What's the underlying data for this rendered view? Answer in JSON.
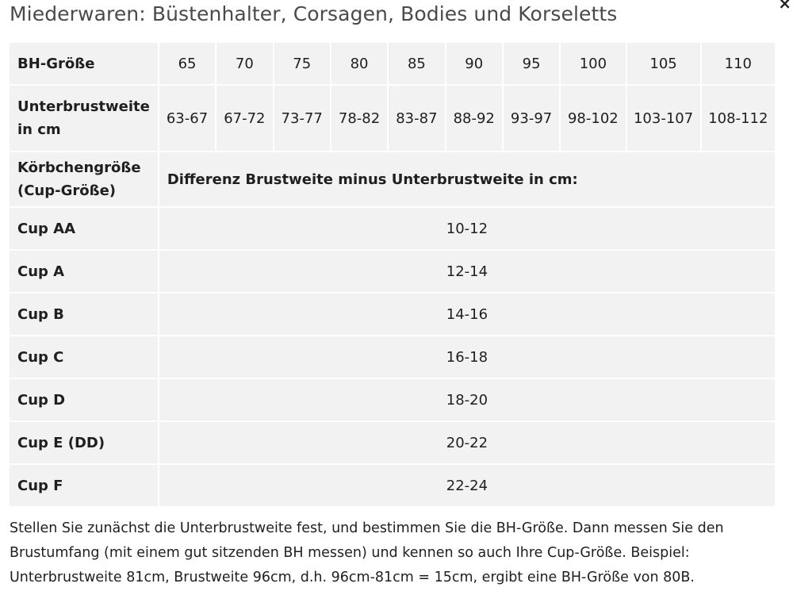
{
  "close_label": "×",
  "title": "Miederwaren: Büstenhalter, Corsagen, Bodies und Korseletts",
  "table": {
    "bh_label": "BH-Größe",
    "sizes": [
      "65",
      "70",
      "75",
      "80",
      "85",
      "90",
      "95",
      "100",
      "105",
      "110"
    ],
    "underbust_label_line1": "Unterbrustweite",
    "underbust_label_line2": "in cm",
    "underbust": [
      "63-67",
      "67-72",
      "73-77",
      "78-82",
      "83-87",
      "88-92",
      "93-97",
      "98-102",
      "103-107",
      "108-112"
    ],
    "cup_label_line1": "Körbchengröße",
    "cup_label_line2": "(Cup-Größe)",
    "diff_header": "Differenz Brustweite minus Unterbrustweite in cm:",
    "cups": [
      {
        "name": "Cup AA",
        "range": "10-12"
      },
      {
        "name": "Cup A",
        "range": "12-14"
      },
      {
        "name": "Cup B",
        "range": "14-16"
      },
      {
        "name": "Cup C",
        "range": "16-18"
      },
      {
        "name": "Cup D",
        "range": "18-20"
      },
      {
        "name": "Cup E (DD)",
        "range": "20-22"
      },
      {
        "name": "Cup F",
        "range": "22-24"
      }
    ]
  },
  "footnote": "Stellen Sie zunächst die Unterbrustweite fest, und bestimmen Sie die BH-Größe. Dann messen Sie den Brustumfang (mit einem gut sitzenden BH messen) und kennen so auch Ihre Cup-Größe. Beispiel: Unterbrustweite 81cm, Brustweite 96cm, d.h. 96cm-81cm = 15cm, ergibt eine BH-Größe von 80B."
}
